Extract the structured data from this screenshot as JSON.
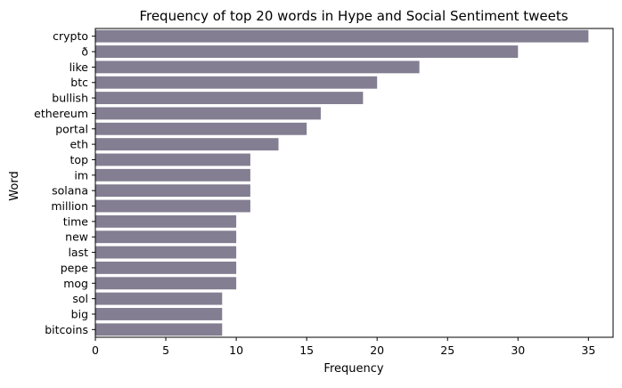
{
  "chart_data": {
    "type": "bar",
    "orientation": "horizontal",
    "title": "Frequency of top 20 words in Hype and Social Sentiment tweets",
    "xlabel": "Frequency",
    "ylabel": "Word",
    "xlim": [
      0,
      36.75
    ],
    "xticks": [
      0,
      5,
      10,
      15,
      20,
      25,
      30,
      35
    ],
    "grid": false,
    "bar_color": "#837e91",
    "categories": [
      "crypto",
      "ð",
      "like",
      "btc",
      "bullish",
      "ethereum",
      "portal",
      "eth",
      "top",
      "im",
      "solana",
      "million",
      "time",
      "new",
      "last",
      "pepe",
      "mog",
      "sol",
      "big",
      "bitcoins"
    ],
    "values": [
      35,
      30,
      23,
      20,
      19,
      16,
      15,
      13,
      11,
      11,
      11,
      11,
      10,
      10,
      10,
      10,
      10,
      9,
      9,
      9
    ]
  }
}
